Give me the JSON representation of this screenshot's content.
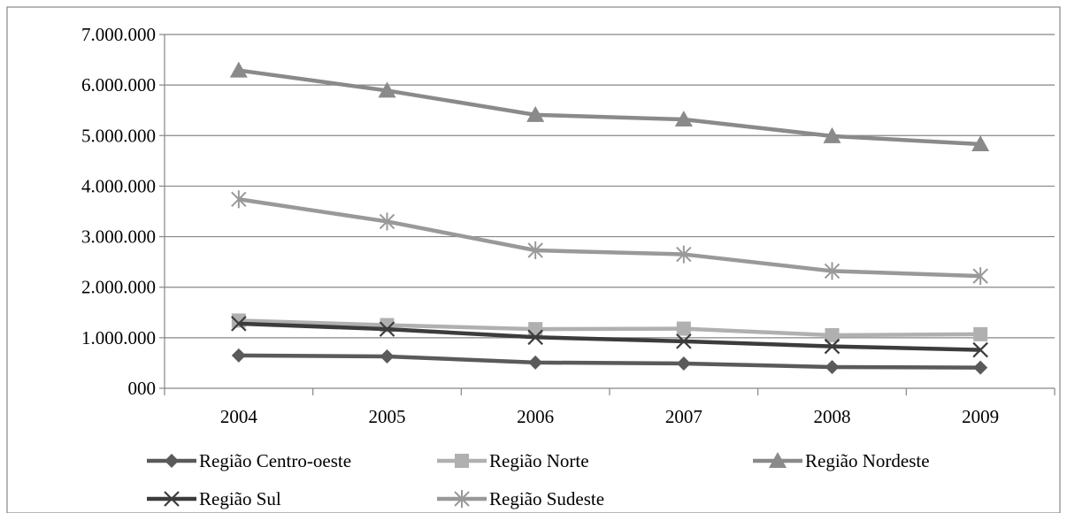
{
  "chart_data": {
    "type": "line",
    "title": "",
    "xlabel": "",
    "ylabel": "",
    "categories": [
      "2004",
      "2005",
      "2006",
      "2007",
      "2008",
      "2009"
    ],
    "ylim": [
      0,
      7000000
    ],
    "yticks": [
      0,
      1000000,
      2000000,
      3000000,
      4000000,
      5000000,
      6000000,
      7000000
    ],
    "ytick_labels": [
      "000",
      "1.000.000",
      "2.000.000",
      "3.000.000",
      "4.000.000",
      "5.000.000",
      "6.000.000",
      "7.000.000"
    ],
    "grid": "horizontal",
    "legend_position": "bottom",
    "series": [
      {
        "name": "Região Centro-oeste",
        "marker": "diamond",
        "color": "#5a5a5a",
        "values": [
          650000,
          630000,
          510000,
          490000,
          420000,
          410000
        ]
      },
      {
        "name": "Região Norte",
        "marker": "square",
        "color": "#b0b0b0",
        "values": [
          1340000,
          1250000,
          1170000,
          1180000,
          1050000,
          1070000
        ]
      },
      {
        "name": "Região Nordeste",
        "marker": "triangle",
        "color": "#8a8a8a",
        "values": [
          6290000,
          5890000,
          5410000,
          5320000,
          4990000,
          4830000
        ]
      },
      {
        "name": "Região Sul",
        "marker": "x",
        "color": "#3c3c3c",
        "values": [
          1280000,
          1170000,
          1010000,
          930000,
          830000,
          760000
        ]
      },
      {
        "name": "Região Sudeste",
        "marker": "star",
        "color": "#999999",
        "values": [
          3740000,
          3300000,
          2730000,
          2650000,
          2320000,
          2220000
        ]
      }
    ]
  }
}
